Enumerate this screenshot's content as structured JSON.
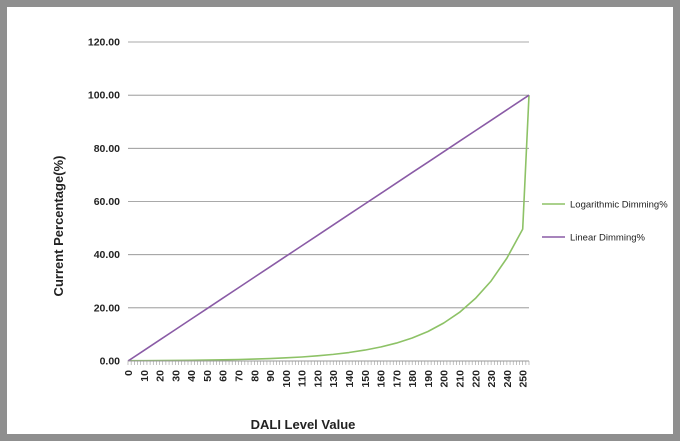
{
  "chart_data": {
    "type": "line",
    "title": "",
    "xlabel": "DALI Level Value",
    "ylabel": "Current Percentage(%)",
    "xlim": [
      0,
      254
    ],
    "ylim": [
      0,
      120
    ],
    "y_ticks": [
      "0.00",
      "20.00",
      "40.00",
      "60.00",
      "80.00",
      "100.00",
      "120.00"
    ],
    "x_tick_labels": [
      "0",
      "10",
      "20",
      "30",
      "40",
      "50",
      "60",
      "70",
      "80",
      "90",
      "100",
      "110",
      "120",
      "130",
      "140",
      "150",
      "160",
      "170",
      "180",
      "190",
      "200",
      "210",
      "220",
      "230",
      "240",
      "250"
    ],
    "grid": "horizontal",
    "legend_position": "right",
    "x": [
      0,
      10,
      20,
      30,
      40,
      50,
      60,
      70,
      80,
      90,
      100,
      110,
      120,
      130,
      140,
      150,
      160,
      170,
      180,
      190,
      200,
      210,
      220,
      230,
      240,
      250,
      254
    ],
    "series": [
      {
        "name": "Logarithmic Dimming%",
        "color": "#8dc266",
        "values": [
          0.1,
          0.13,
          0.16,
          0.21,
          0.26,
          0.34,
          0.43,
          0.56,
          0.72,
          0.92,
          1.18,
          1.51,
          1.94,
          2.49,
          3.19,
          4.1,
          5.26,
          6.74,
          8.66,
          11.1,
          14.3,
          18.3,
          23.5,
          30.1,
          38.7,
          49.6,
          100.0
        ]
      },
      {
        "name": "Linear Dimming%",
        "color": "#8a5ba6",
        "values": [
          0.0,
          3.94,
          7.87,
          11.81,
          15.75,
          19.69,
          23.62,
          27.56,
          31.5,
          35.43,
          39.37,
          43.31,
          47.24,
          51.18,
          55.12,
          59.06,
          62.99,
          66.93,
          70.87,
          74.8,
          78.74,
          82.68,
          86.61,
          90.55,
          94.49,
          98.43,
          100.0
        ]
      }
    ]
  }
}
